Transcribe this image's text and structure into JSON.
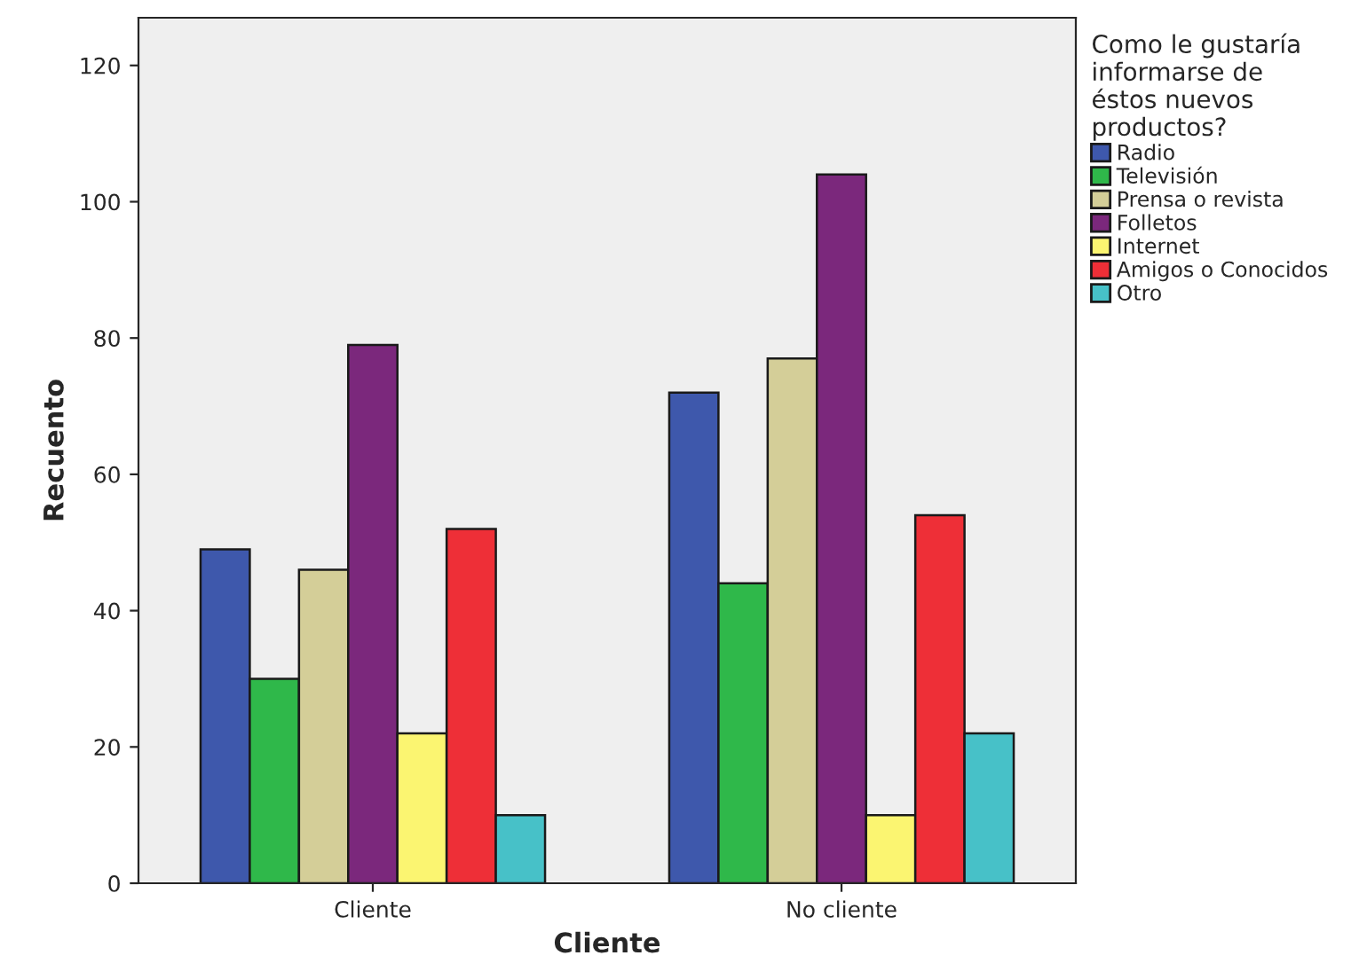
{
  "chart_data": {
    "type": "bar",
    "categories": [
      "Cliente",
      "No cliente"
    ],
    "xlabel": "Cliente",
    "ylabel": "Recuento",
    "legend_title": "Como le gustaría\ninformarse de\néstos nuevos\nproductos?",
    "legend": "right",
    "grid": false,
    "ylim": [
      0,
      127
    ],
    "yticks": [
      0,
      20,
      40,
      60,
      80,
      100,
      120
    ],
    "series": [
      {
        "name": "Radio",
        "color": "#3e58ac",
        "values": [
          49,
          72
        ]
      },
      {
        "name": "Televisión",
        "color": "#2fb84a",
        "values": [
          30,
          44
        ]
      },
      {
        "name": "Prensa o revista",
        "color": "#d4ce98",
        "values": [
          46,
          77
        ]
      },
      {
        "name": "Folletos",
        "color": "#7b287c",
        "values": [
          79,
          104
        ]
      },
      {
        "name": "Internet",
        "color": "#fbf571",
        "values": [
          22,
          10
        ]
      },
      {
        "name": "Amigos o Conocidos",
        "color": "#ee2f37",
        "values": [
          52,
          54
        ]
      },
      {
        "name": "Otro",
        "color": "#47c1c8",
        "values": [
          10,
          22
        ]
      }
    ]
  }
}
